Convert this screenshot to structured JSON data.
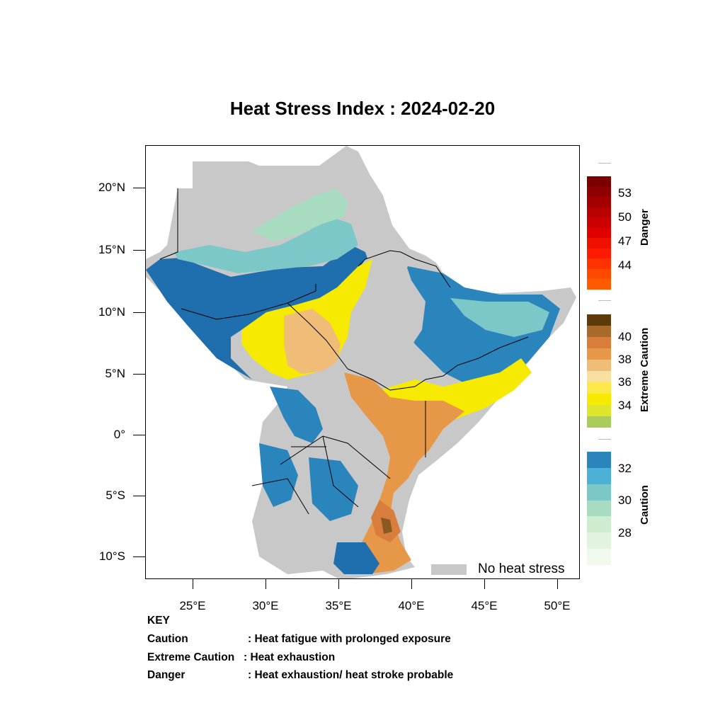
{
  "title": "Heat Stress Index : 2024-02-20",
  "lat_labels": [
    "20°N",
    "15°N",
    "10°N",
    "5°N",
    "0°",
    "5°S",
    "10°S"
  ],
  "lon_labels": [
    "25°E",
    "30°E",
    "35°E",
    "40°E",
    "45°E",
    "50°E"
  ],
  "no_heat_stress_label": "No heat stress",
  "colorbars": {
    "danger": {
      "title": "Danger",
      "ticks": [
        "53",
        "50",
        "47",
        "44"
      ],
      "colors": [
        "#7a0000",
        "#8f0000",
        "#a30000",
        "#b80000",
        "#cc0000",
        "#e00000",
        "#f01000",
        "#ff1a00",
        "#ff3300",
        "#ff4800",
        "#ff5a00"
      ]
    },
    "extreme_caution": {
      "title": "Extreme Caution",
      "ticks": [
        "40",
        "38",
        "36",
        "34"
      ],
      "colors": [
        "#5c3a0a",
        "#a86a2a",
        "#d87d3c",
        "#e69848",
        "#f0bd78",
        "#f8e0a0",
        "#fde84a",
        "#f5ea00",
        "#dfe52a",
        "#a9cc5a"
      ]
    },
    "caution": {
      "title": "Caution",
      "ticks": [
        "32",
        "30",
        "28"
      ],
      "colors": [
        "#2b85bd",
        "#4bb1d6",
        "#7cc8c8",
        "#a8dcc0",
        "#cdecd0",
        "#e2f4e0",
        "#f1f9ef"
      ]
    }
  },
  "key": {
    "heading": "KEY",
    "rows": [
      {
        "term": "Caution",
        "desc": ": Heat fatigue with prolonged exposure"
      },
      {
        "term": "Extreme Caution",
        "desc": ": Heat exhaustion"
      },
      {
        "term": "Danger",
        "desc": ": Heat exhaustion/ heat stroke probable"
      }
    ]
  },
  "map_colors": {
    "no_stress": "#c8c8c8",
    "blue_dark": "#1f6fae",
    "blue": "#2b85bd",
    "teal": "#7cc8c8",
    "mint": "#a8dcc0",
    "pale": "#cdecd0",
    "yellow": "#f5ea00",
    "tan": "#f0bd78",
    "orange": "#e69848",
    "dark_orange": "#d87d3c",
    "brown": "#8a5a22"
  }
}
